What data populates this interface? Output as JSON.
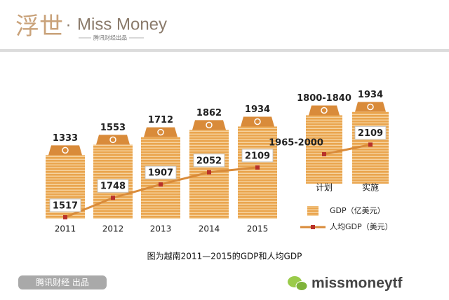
{
  "header": {
    "logo_cn": "浮世",
    "logo_dot": "·",
    "logo_en": "Miss Money",
    "tagline": "腾讯财经出品"
  },
  "chart_data": [
    {
      "type": "bar",
      "categories": [
        "2011",
        "2012",
        "2013",
        "2014",
        "2015"
      ],
      "series": [
        {
          "name": "GDP（亿美元）",
          "type": "bar",
          "color": "#eaa54e",
          "values": [
            1333,
            1553,
            1712,
            1862,
            1934
          ]
        },
        {
          "name": "人均GDP（美元）",
          "type": "line",
          "color": "#d98b3a",
          "marker_color": "#b8312a",
          "values": [
            1517,
            1748,
            1907,
            2052,
            2109
          ]
        }
      ]
    },
    {
      "type": "bar",
      "categories": [
        "计划",
        "实施"
      ],
      "series": [
        {
          "type": "bar",
          "color": "#eaa54e",
          "values": [
            1840,
            1934
          ],
          "value_labels": [
            "1800-1840",
            "1934"
          ]
        },
        {
          "type": "line",
          "color": "#d98b3a",
          "marker_color": "#b8312a",
          "values": [
            2000,
            2109
          ],
          "value_labels": [
            "1965-2000",
            "2109"
          ]
        }
      ]
    }
  ],
  "caption": "图为越南2011—2015的GDP和人均GDP",
  "footer": {
    "source": "腾讯财经 出品",
    "account": "missmoneytf"
  }
}
